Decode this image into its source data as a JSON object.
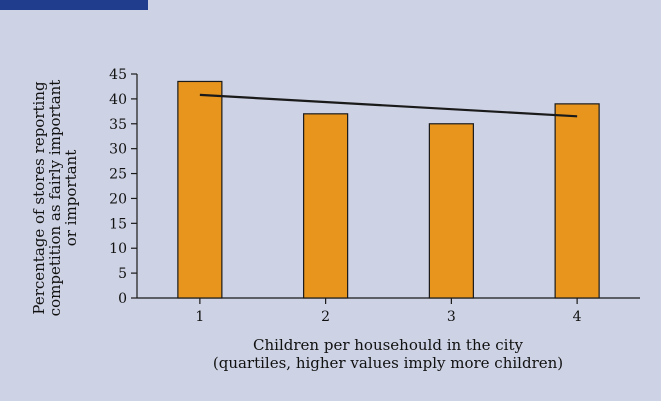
{
  "colors": {
    "background": "#cdd2e4",
    "header_bar": "#1f3d8c",
    "bar_fill": "#e8951e",
    "bar_stroke": "#1a1a1a",
    "line": "#1a1a1a"
  },
  "chart_data": {
    "type": "bar",
    "categories": [
      "1",
      "2",
      "3",
      "4"
    ],
    "values": [
      43.5,
      37,
      35,
      39
    ],
    "trend_line": {
      "start": 40.8,
      "end": 36.5
    },
    "ylim": [
      0,
      45
    ],
    "y_ticks": [
      0,
      5,
      10,
      15,
      20,
      25,
      30,
      35,
      40,
      45
    ],
    "ylabel_lines": [
      "Percentage of stores reporting",
      "competition as fairly important",
      "or important"
    ],
    "xlabel_lines": [
      "Children per househould in the city",
      "(quartiles, higher values imply more children)"
    ],
    "grid": false,
    "legend": "none"
  }
}
